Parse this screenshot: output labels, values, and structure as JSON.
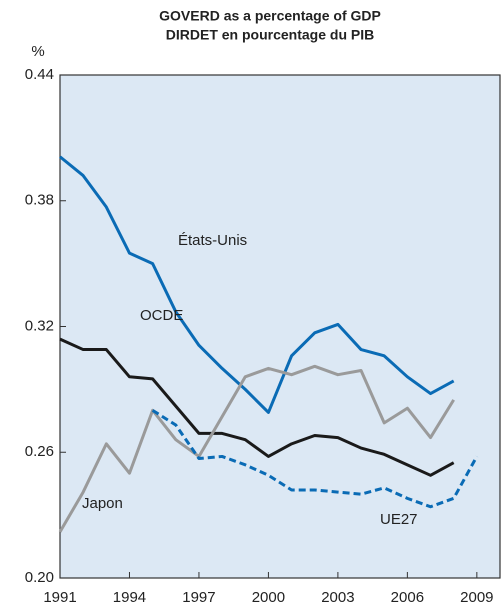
{
  "chart_data": {
    "type": "line",
    "title": "GOVERD as a percentage of GDP",
    "subtitle": "DIRDET en pourcentage du PIB",
    "y_label": "%",
    "x": [
      1991,
      1992,
      1993,
      1994,
      1995,
      1996,
      1997,
      1998,
      1999,
      2000,
      2001,
      2002,
      2003,
      2004,
      2005,
      2006,
      2007,
      2008,
      2009
    ],
    "series": [
      {
        "name": "États-Unis",
        "color": "#0a6bb5",
        "style": "solid",
        "values": [
          0.401,
          0.392,
          0.377,
          0.355,
          0.35,
          0.327,
          0.311,
          0.3,
          0.29,
          0.279,
          0.306,
          0.317,
          0.321,
          0.309,
          0.306,
          0.296,
          0.288,
          0.294,
          null
        ]
      },
      {
        "name": "OCDE",
        "color": "#1a1a1a",
        "style": "solid",
        "values": [
          0.314,
          0.309,
          0.309,
          0.296,
          0.295,
          0.282,
          0.269,
          0.269,
          0.266,
          0.258,
          0.264,
          0.268,
          0.267,
          0.262,
          0.259,
          0.254,
          0.249,
          0.255,
          null
        ]
      },
      {
        "name": "Japon",
        "color": "#9a9a9a",
        "style": "solid",
        "values": [
          0.222,
          0.241,
          0.264,
          0.25,
          0.28,
          0.266,
          0.258,
          0.277,
          0.296,
          0.3,
          0.297,
          0.301,
          0.297,
          0.299,
          0.274,
          0.281,
          0.267,
          0.285,
          null
        ]
      },
      {
        "name": "UE27",
        "color": "#0a6bb5",
        "style": "dashed",
        "values": [
          null,
          null,
          null,
          null,
          0.28,
          0.273,
          0.257,
          0.258,
          0.254,
          0.249,
          0.242,
          0.242,
          0.241,
          0.24,
          0.243,
          0.238,
          0.234,
          0.238,
          0.258
        ]
      }
    ],
    "xlim": [
      1991,
      2010
    ],
    "xticks": [
      1991,
      1994,
      1997,
      2000,
      2003,
      2006,
      2009
    ],
    "ylim": [
      0.2,
      0.44
    ],
    "yticks": [
      {
        "value": 0.2,
        "label": "0.20"
      },
      0.26,
      0.32,
      0.38,
      0.44
    ],
    "grid": false
  }
}
